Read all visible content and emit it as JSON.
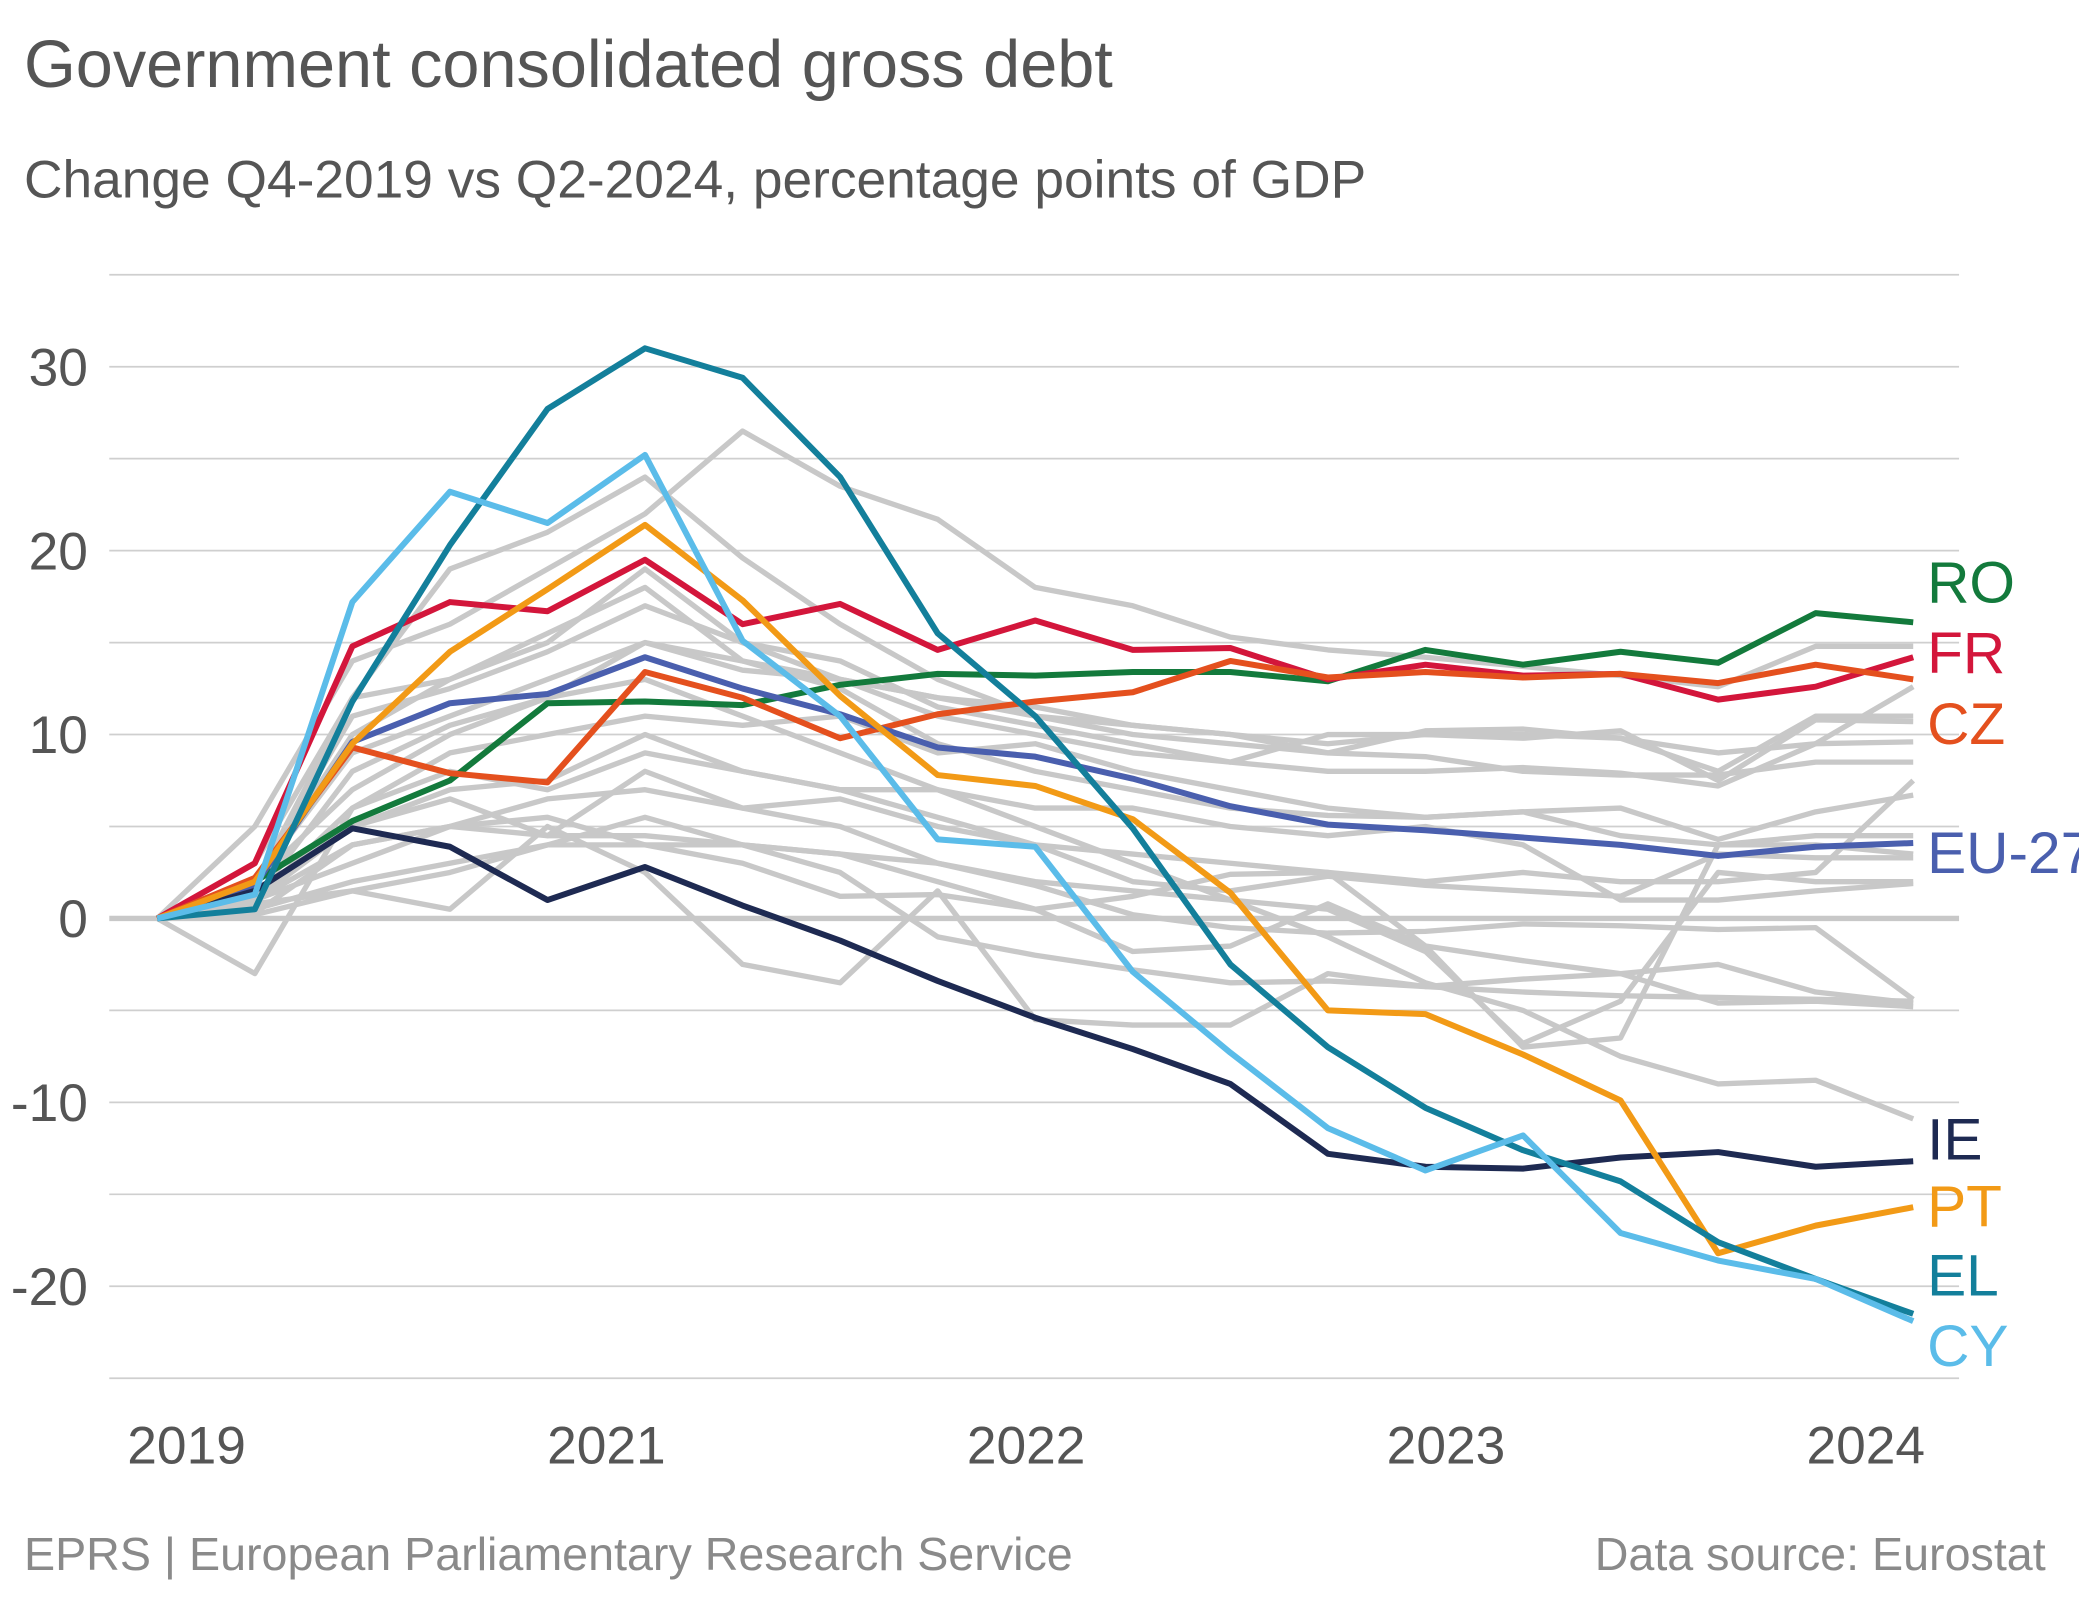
{
  "chart_data": {
    "type": "line",
    "title": "Government consolidated gross debt",
    "subtitle": "Change Q4-2019 vs Q2-2024, percentage points of GDP",
    "ylim": [
      -25,
      35
    ],
    "yticks": [
      30,
      20,
      10,
      0,
      -10,
      -20
    ],
    "ytick_labels": [
      "30",
      "20",
      "10",
      "0",
      "-10",
      "-20"
    ],
    "xtick_labels": [
      "2019",
      "2021",
      "2022",
      "2023",
      "2024"
    ],
    "grid": "horizontal",
    "legend": "direct labels at right end of lines",
    "highlighted": [
      {
        "name": "RO",
        "color": "#137a3c",
        "values": [
          0,
          2,
          5.3,
          7.5,
          11.7,
          11.8,
          11.6,
          12.7,
          13.3,
          13.2,
          13.4,
          13.4,
          12.9,
          14.6,
          13.8,
          14.5,
          13.9,
          16.6,
          16.1
        ]
      },
      {
        "name": "FR",
        "color": "#d3163b",
        "values": [
          0,
          3,
          14.8,
          17.2,
          16.7,
          19.5,
          16,
          17.1,
          14.6,
          16.2,
          14.6,
          14.7,
          13,
          13.8,
          13.2,
          13.3,
          11.9,
          12.6,
          14.2
        ]
      },
      {
        "name": "CZ",
        "color": "#e4501e",
        "values": [
          0,
          2.2,
          9.3,
          7.9,
          7.4,
          13.4,
          12,
          9.8,
          11.1,
          11.8,
          12.3,
          14,
          13.1,
          13.4,
          13.1,
          13.3,
          12.8,
          13.8,
          13
        ]
      },
      {
        "name": "EU-27",
        "color": "#4a5fae",
        "values": [
          0,
          1.8,
          9.6,
          11.7,
          12.2,
          14.2,
          12.5,
          11.1,
          9.3,
          8.8,
          7.6,
          6.1,
          5.1,
          4.8,
          4.4,
          4,
          3.4,
          3.9,
          4.1
        ]
      },
      {
        "name": "IE",
        "color": "#1e2a52",
        "values": [
          0,
          1.5,
          4.9,
          3.9,
          1,
          2.8,
          0.7,
          -1.2,
          -3.4,
          -5.4,
          -7.1,
          -9,
          -12.8,
          -13.5,
          -13.6,
          -13,
          -12.7,
          -13.5,
          -13.2
        ]
      },
      {
        "name": "PT",
        "color": "#f29a16",
        "values": [
          0,
          2,
          9.5,
          14.5,
          17.9,
          21.4,
          17.3,
          12.1,
          7.8,
          7.2,
          5.4,
          1.4,
          -5,
          -5.2,
          -7.4,
          -9.9,
          -18.2,
          -16.7,
          -15.7
        ]
      },
      {
        "name": "EL",
        "color": "#137f9b",
        "values": [
          0,
          0.5,
          11.8,
          20.3,
          27.7,
          31,
          29.4,
          24,
          15.5,
          11,
          4.9,
          -2.5,
          -7,
          -10.3,
          -12.6,
          -14.3,
          -17.6,
          -19.6,
          -21.5
        ]
      },
      {
        "name": "CY",
        "color": "#5bbce9",
        "values": [
          0,
          1.3,
          17.2,
          23.2,
          21.5,
          25.2,
          15.1,
          11,
          4.3,
          3.9,
          -2.9,
          -7.3,
          -11.4,
          -13.7,
          -11.8,
          -17.1,
          -18.6,
          -19.6,
          -21.9
        ]
      }
    ],
    "other_series_color": "#c8c8c8",
    "other_series": [
      [
        0,
        5,
        14,
        16,
        19,
        22,
        26.5,
        23.5,
        21.7,
        18,
        17,
        15.3,
        14.6,
        14.2,
        13.7,
        13.2,
        12.6,
        14.8,
        14.8
      ],
      [
        0,
        3,
        12,
        19,
        21,
        24,
        19.6,
        16,
        13,
        11,
        10,
        9.5,
        9,
        10.2,
        10.3,
        9.8,
        8,
        11,
        11
      ],
      [
        0,
        2,
        10,
        13,
        15,
        19,
        15,
        13,
        11,
        10,
        9,
        8.5,
        8,
        8,
        8.2,
        7.9,
        7.2,
        9.5,
        12.6
      ],
      [
        0,
        -3,
        6,
        9,
        10,
        11,
        10.5,
        11,
        9,
        9.5,
        8,
        7,
        6,
        5.5,
        5.8,
        6,
        4.3,
        5.8,
        6.7
      ],
      [
        0,
        1,
        8,
        10.5,
        12,
        15,
        14,
        13,
        12,
        11.5,
        10.5,
        10,
        9.5,
        10,
        9.8,
        10.2,
        7.5,
        10.8,
        10.7
      ],
      [
        0,
        1,
        5,
        6.5,
        4.5,
        8,
        6,
        6.5,
        5,
        4,
        2,
        1.5,
        2.3,
        1.8,
        1.5,
        1.2,
        3.5,
        3.3,
        3.3
      ],
      [
        0,
        0.8,
        1.5,
        0.5,
        5,
        2.5,
        -2.5,
        -3.5,
        1.5,
        -5.5,
        -5.8,
        -5.8,
        -3,
        -3.7,
        -3.3,
        -3,
        -2.5,
        -4,
        -4.6
      ],
      [
        0,
        0.3,
        4,
        5,
        6.5,
        7,
        6,
        5,
        3,
        1.8,
        0.2,
        -0.5,
        -0.8,
        -0.7,
        -0.3,
        -0.4,
        -0.6,
        -0.5,
        -4.4
      ],
      [
        0,
        2,
        7,
        10,
        12,
        13,
        11,
        9,
        7,
        5,
        3,
        1,
        -1,
        -3.5,
        -5,
        -7.5,
        -9,
        -8.8,
        -10.9
      ],
      [
        0,
        1.5,
        5,
        7,
        7.5,
        10,
        8,
        7,
        7,
        6,
        6,
        5,
        4.5,
        5,
        4,
        1,
        1,
        1.5,
        1.9
      ],
      [
        0,
        1,
        3,
        5,
        4.5,
        4.5,
        4,
        3.5,
        3,
        2,
        1.5,
        1,
        0.5,
        -1.8,
        -6.8,
        -4.5,
        2.5,
        2,
        2
      ],
      [
        0,
        2,
        9,
        11,
        13,
        15,
        13.5,
        13,
        12,
        11,
        10.5,
        10,
        9,
        8.8,
        8,
        7.8,
        7.8,
        8.5,
        8.5
      ],
      [
        0,
        1.8,
        12,
        13,
        15.5,
        18,
        14,
        12.5,
        9.5,
        8,
        7,
        6,
        5.6,
        5.5,
        5.8,
        4.5,
        4,
        4.5,
        4.5
      ],
      [
        0,
        0.5,
        2,
        3,
        4,
        4,
        3,
        1.2,
        1.3,
        0.5,
        1.2,
        2.4,
        2.5,
        -1.5,
        -2.3,
        -3,
        -4.6,
        -4.5,
        -4.8
      ],
      [
        0,
        0.2,
        1.5,
        2.5,
        4,
        5.5,
        4,
        3.5,
        2,
        0.5,
        -1.8,
        -1.5,
        0.8,
        -1.5,
        -7,
        -6.5,
        4,
        4,
        3.5
      ],
      [
        0,
        1,
        6,
        8,
        7,
        9,
        8,
        7,
        5.5,
        4,
        3.5,
        3,
        2.5,
        2,
        2.5,
        2,
        2,
        2.5,
        7.5
      ],
      [
        0,
        2,
        11,
        12.5,
        14.5,
        17,
        15,
        14,
        11.5,
        10.5,
        9.5,
        8.5,
        10,
        10,
        10,
        9.8,
        9,
        9.5,
        9.6
      ],
      [
        0,
        1,
        4,
        5,
        5.5,
        4,
        4,
        2.5,
        -1,
        -2,
        -2.8,
        -3.5,
        -3.4,
        -3.7,
        -4,
        -4.2,
        -4.3,
        -4.4,
        -4.5
      ]
    ]
  },
  "footer": {
    "source_left": "EPRS | European Parliamentary Research Service",
    "source_right": "Data source: Eurostat"
  }
}
